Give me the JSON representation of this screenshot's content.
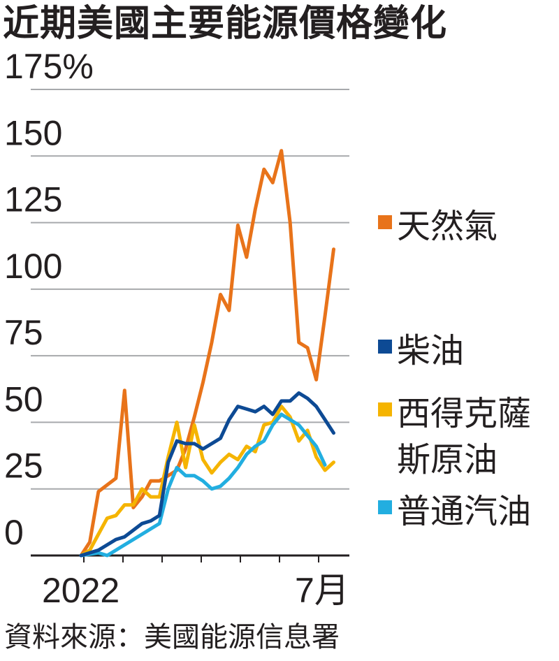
{
  "title": "近期美國主要能源價格變化",
  "source": "資料來源：美國能源信息署",
  "colors": {
    "natural_gas": "#e8731a",
    "diesel": "#0d4a94",
    "wti": "#f5b400",
    "gasoline": "#22aee0",
    "grid": "#a7a9ac",
    "axis": "#231f20"
  },
  "chart_data": {
    "type": "line",
    "title": "近期美國主要能源價格變化",
    "xlabel": "",
    "ylabel": "",
    "ylim": [
      0,
      175
    ],
    "y_ticks": [
      0,
      25,
      50,
      75,
      100,
      125,
      150,
      175
    ],
    "y_tick_labels": [
      "0",
      "25",
      "50",
      "75",
      "100",
      "125",
      "150",
      "175%"
    ],
    "x_labels": [
      "2022",
      "7月"
    ],
    "legend": [
      "天然氣",
      "柴油",
      "西得克薩斯原油",
      "普通汽油"
    ],
    "legend_display": [
      [
        "天然氣"
      ],
      [
        "柴油"
      ],
      [
        "西得克薩",
        "斯原油"
      ],
      [
        "普通汽油"
      ]
    ],
    "x": [
      0,
      1,
      2,
      3,
      4,
      5,
      6,
      7,
      8,
      9,
      10,
      11,
      12,
      13,
      14,
      15,
      16,
      17,
      18,
      19,
      20,
      21,
      22,
      23,
      24,
      25,
      26,
      27,
      28,
      29,
      30,
      31,
      32,
      33,
      34,
      35,
      36,
      37,
      38,
      39,
      40,
      41,
      42,
      43,
      44,
      45,
      46,
      47,
      48,
      49,
      50,
      51,
      52,
      53,
      54,
      55,
      56,
      57,
      58,
      59,
      60,
      61,
      62,
      63,
      64,
      65,
      66,
      67
    ],
    "series": [
      {
        "name": "天然氣",
        "color_key": "natural_gas",
        "points": [
          [
            0,
            0
          ],
          [
            2,
            5
          ],
          [
            4,
            24
          ],
          [
            8,
            29
          ],
          [
            10,
            62
          ],
          [
            12,
            18
          ],
          [
            14,
            22
          ],
          [
            16,
            28
          ],
          [
            18,
            28
          ],
          [
            20,
            30
          ],
          [
            22,
            32
          ],
          [
            24,
            40
          ],
          [
            26,
            52
          ],
          [
            28,
            65
          ],
          [
            30,
            80
          ],
          [
            32,
            98
          ],
          [
            34,
            92
          ],
          [
            36,
            124
          ],
          [
            38,
            112
          ],
          [
            40,
            130
          ],
          [
            42,
            145
          ],
          [
            44,
            140
          ],
          [
            46,
            152
          ],
          [
            48,
            125
          ],
          [
            50,
            80
          ],
          [
            52,
            78
          ],
          [
            54,
            66
          ],
          [
            56,
            90
          ],
          [
            58,
            115
          ]
        ]
      },
      {
        "name": "柴油",
        "color_key": "diesel",
        "points": [
          [
            0,
            0
          ],
          [
            4,
            2
          ],
          [
            8,
            6
          ],
          [
            10,
            7
          ],
          [
            14,
            12
          ],
          [
            16,
            13
          ],
          [
            18,
            15
          ],
          [
            20,
            35
          ],
          [
            22,
            43
          ],
          [
            24,
            42
          ],
          [
            26,
            42
          ],
          [
            28,
            40
          ],
          [
            30,
            42
          ],
          [
            32,
            44
          ],
          [
            34,
            51
          ],
          [
            36,
            56
          ],
          [
            38,
            55
          ],
          [
            40,
            54
          ],
          [
            42,
            56
          ],
          [
            44,
            53
          ],
          [
            46,
            58
          ],
          [
            48,
            58
          ],
          [
            50,
            61
          ],
          [
            52,
            59
          ],
          [
            54,
            56
          ],
          [
            56,
            51
          ],
          [
            58,
            46
          ]
        ]
      },
      {
        "name": "西得克薩斯原油",
        "color_key": "wti",
        "points": [
          [
            0,
            0
          ],
          [
            2,
            2
          ],
          [
            4,
            8
          ],
          [
            6,
            14
          ],
          [
            8,
            15
          ],
          [
            10,
            19
          ],
          [
            12,
            19
          ],
          [
            14,
            25
          ],
          [
            16,
            22
          ],
          [
            18,
            22
          ],
          [
            20,
            37
          ],
          [
            22,
            50
          ],
          [
            24,
            33
          ],
          [
            26,
            49
          ],
          [
            28,
            36
          ],
          [
            30,
            31
          ],
          [
            32,
            35
          ],
          [
            34,
            38
          ],
          [
            36,
            36
          ],
          [
            38,
            41
          ],
          [
            40,
            39
          ],
          [
            42,
            49
          ],
          [
            44,
            50
          ],
          [
            46,
            56
          ],
          [
            48,
            52
          ],
          [
            50,
            43
          ],
          [
            52,
            47
          ],
          [
            54,
            37
          ],
          [
            56,
            32
          ],
          [
            58,
            35
          ]
        ]
      },
      {
        "name": "普通汽油",
        "color_key": "gasoline",
        "points": [
          [
            0,
            0
          ],
          [
            4,
            1
          ],
          [
            6,
            0
          ],
          [
            8,
            2
          ],
          [
            10,
            4
          ],
          [
            12,
            6
          ],
          [
            14,
            8
          ],
          [
            16,
            10
          ],
          [
            18,
            12
          ],
          [
            20,
            25
          ],
          [
            22,
            33
          ],
          [
            24,
            30
          ],
          [
            26,
            30
          ],
          [
            28,
            28
          ],
          [
            30,
            25
          ],
          [
            32,
            26
          ],
          [
            34,
            29
          ],
          [
            36,
            33
          ],
          [
            38,
            38
          ],
          [
            40,
            41
          ],
          [
            42,
            43
          ],
          [
            44,
            49
          ],
          [
            46,
            53
          ],
          [
            48,
            51
          ],
          [
            50,
            49
          ],
          [
            52,
            45
          ],
          [
            54,
            41
          ],
          [
            56,
            34
          ]
        ]
      }
    ]
  }
}
